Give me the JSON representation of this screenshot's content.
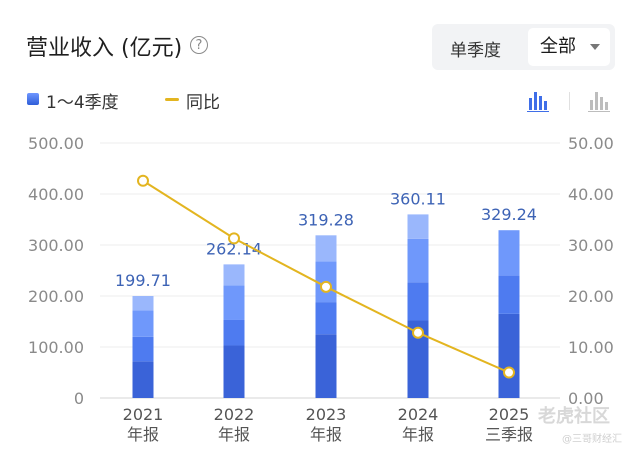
{
  "header": {
    "title": "营业收入 (亿元)",
    "help_icon": "question-circle-icon",
    "toggle_single": "单季度",
    "toggle_all": "全部"
  },
  "legend": {
    "bar_label": "1～4季度",
    "line_label": "同比"
  },
  "watermark": {
    "main": "老虎社区",
    "sub": "@三哥财经汇"
  },
  "chart_data": {
    "type": "bar",
    "categories": [
      "2021\n年报",
      "2022\n年报",
      "2023\n年报",
      "2024\n年报",
      "2025\n三季报"
    ],
    "category_lines": [
      [
        "2021",
        "年报"
      ],
      [
        "2022",
        "年报"
      ],
      [
        "2023",
        "年报"
      ],
      [
        "2024",
        "年报"
      ],
      [
        "2025",
        "三季报"
      ]
    ],
    "stacks": [
      [
        72,
        48,
        52,
        28
      ],
      [
        103,
        50,
        68,
        41
      ],
      [
        125,
        63,
        80,
        51
      ],
      [
        152,
        75,
        85,
        48
      ],
      [
        165,
        75,
        89
      ]
    ],
    "totals": [
      "199.71",
      "262.14",
      "319.28",
      "360.11",
      "329.24"
    ],
    "yoy": [
      42.6,
      31.3,
      21.8,
      12.8,
      5.0
    ],
    "y_left": {
      "min": 0,
      "max": 500,
      "ticks": [
        "0",
        "100.00",
        "200.00",
        "300.00",
        "400.00",
        "500.00"
      ]
    },
    "y_right": {
      "min": 0,
      "max": 50,
      "ticks": [
        "0.00",
        "10.00",
        "20.00",
        "30.00",
        "40.00",
        "50.00"
      ]
    },
    "grid": true,
    "colors": {
      "q1": "#3a63d8",
      "q2": "#4e7bf0",
      "q3": "#6f98fb",
      "q4": "#9ab7fc",
      "line": "#e3b520",
      "total_label": "#3d63b5",
      "axis_text": "#8a8a8a"
    }
  }
}
